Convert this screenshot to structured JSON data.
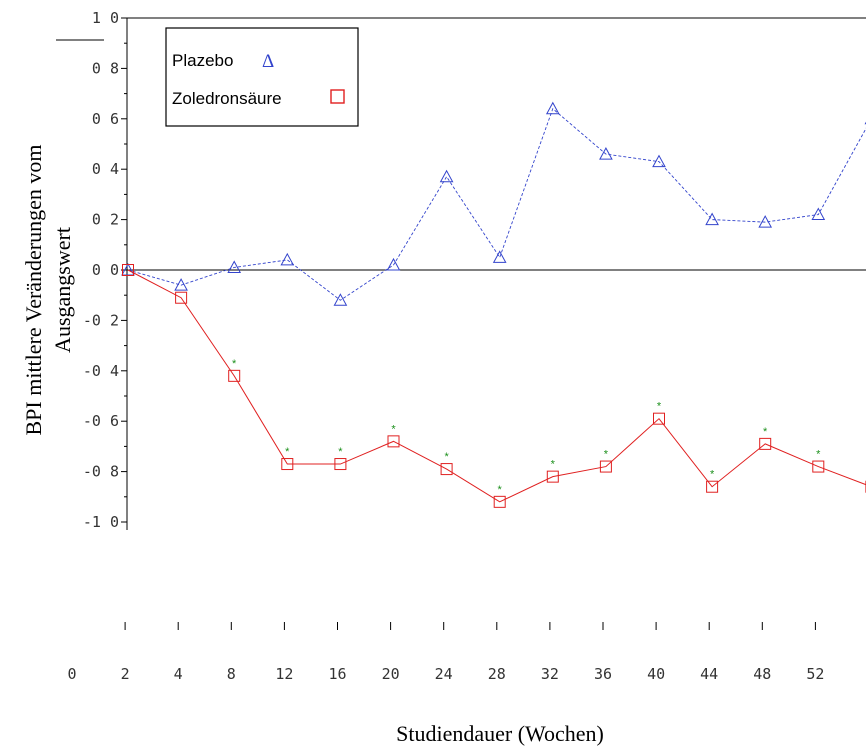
{
  "chart_data": {
    "type": "line",
    "xlabel": "Studiendauer (Wochen)",
    "ylabel": "BPI mittlere Veränderungen vom Ausgangswert",
    "ylabel_lines": [
      "BPI mittlere Veränderungen vom",
      "Ausgangswert"
    ],
    "ylim": [
      -1.0,
      1.0
    ],
    "y_ticks": [
      1.0,
      0.8,
      0.6,
      0.4,
      0.2,
      0.0,
      -0.2,
      -0.4,
      -0.6,
      -0.8,
      -1.0
    ],
    "y_tick_labels": [
      "1 0",
      "0 8",
      "0 6",
      "0 4",
      "0 2",
      "0 0",
      "-0 2",
      "-0 4",
      "-0 6",
      "-0 8",
      "-1 0"
    ],
    "x": [
      2,
      4,
      8,
      12,
      16,
      20,
      24,
      28,
      32,
      36,
      40,
      44,
      48,
      52,
      56
    ],
    "x_tick_labels": [
      "0",
      "2",
      "4",
      "8",
      "12",
      "16",
      "20",
      "24",
      "28",
      "32",
      "36",
      "40",
      "44",
      "48",
      "52"
    ],
    "series": [
      {
        "name": "Plazebo",
        "symbol": "Δ",
        "color": "#3344cc",
        "line_style": "dashed",
        "values": [
          0.0,
          -0.06,
          0.01,
          0.04,
          -0.12,
          0.02,
          0.37,
          0.05,
          0.64,
          0.46,
          0.43,
          0.2,
          0.19,
          0.22,
          0.6
        ]
      },
      {
        "name": "Zoledronsäure",
        "symbol": "□",
        "color": "#e02020",
        "line_style": "solid",
        "values": [
          0.0,
          -0.11,
          -0.42,
          -0.77,
          -0.77,
          -0.68,
          -0.79,
          -0.92,
          -0.82,
          -0.78,
          -0.59,
          -0.86,
          -0.69,
          -0.78,
          -0.86
        ],
        "significant": [
          false,
          false,
          true,
          true,
          true,
          true,
          true,
          true,
          true,
          true,
          true,
          true,
          true,
          true,
          false
        ]
      }
    ],
    "significance_marker": "*",
    "significance_color": "#1a8f1a",
    "legend": {
      "placement": "top-left",
      "entries": [
        "Plazebo",
        "Zoledronsäure"
      ]
    },
    "zero_line": true
  }
}
